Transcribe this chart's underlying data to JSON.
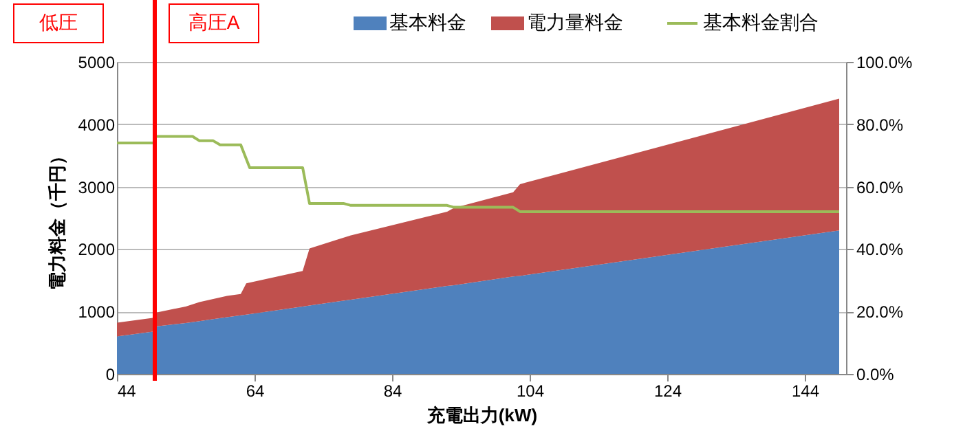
{
  "chart_data": {
    "type": "area",
    "stacked": true,
    "xlabel": "充電出力(kW)",
    "ylabel": "電力料金（千円）",
    "x": [
      44,
      49.4,
      49.6,
      54,
      56,
      58,
      60,
      62,
      62.8,
      71,
      72,
      76,
      78,
      92,
      93,
      101.6,
      102.6,
      149
    ],
    "series": [
      {
        "name": "基本料金",
        "color": "#4f81bd",
        "values": [
          600,
          680,
          760,
          815,
          845,
          877,
          908,
          940,
          950,
          1080,
          1095,
          1160,
          1190,
          1410,
          1420,
          1560,
          1570,
          2300
        ]
      },
      {
        "name": "電力量料金",
        "color": "#c0504d",
        "values": [
          220,
          220,
          220,
          265,
          305,
          323,
          342,
          340,
          500,
          570,
          915,
          990,
          1030,
          1190,
          1240,
          1350,
          1470,
          2110
        ]
      },
      {
        "name": "基本料金割合",
        "type": "line",
        "axis": "y2",
        "color": "#9bbb59",
        "x": [
          44,
          49.4,
          49.6,
          55,
          56,
          58,
          59,
          62,
          63.3,
          71,
          72,
          77,
          78,
          92,
          93,
          101.6,
          102.6,
          149
        ],
        "values": [
          74.0,
          74.0,
          76.1,
          76.1,
          74.7,
          74.7,
          73.4,
          73.4,
          66.1,
          66.1,
          54.6,
          54.6,
          54.0,
          54.0,
          53.4,
          53.4,
          52.0,
          52.0
        ]
      }
    ],
    "xlim": [
      44,
      150
    ],
    "xticks": [
      44,
      64,
      84,
      104,
      124,
      144
    ],
    "ylim": [
      0,
      5000
    ],
    "yticks": [
      0,
      1000,
      2000,
      3000,
      4000,
      5000
    ],
    "y2lim": [
      0,
      100
    ],
    "y2ticks": [
      {
        "value": 0,
        "label": "0.0%"
      },
      {
        "value": 20,
        "label": "20.0%"
      },
      {
        "value": 40,
        "label": "40.0%"
      },
      {
        "value": 60,
        "label": "60.0%"
      },
      {
        "value": 80,
        "label": "80.0%"
      },
      {
        "value": 100,
        "label": "100.0%"
      }
    ],
    "ref_lines": [
      {
        "axis": "x",
        "value": 49.5,
        "color": "#ff0000"
      }
    ],
    "annotations": [
      "低圧",
      "高圧A"
    ],
    "grid": "y",
    "legend": "top"
  }
}
